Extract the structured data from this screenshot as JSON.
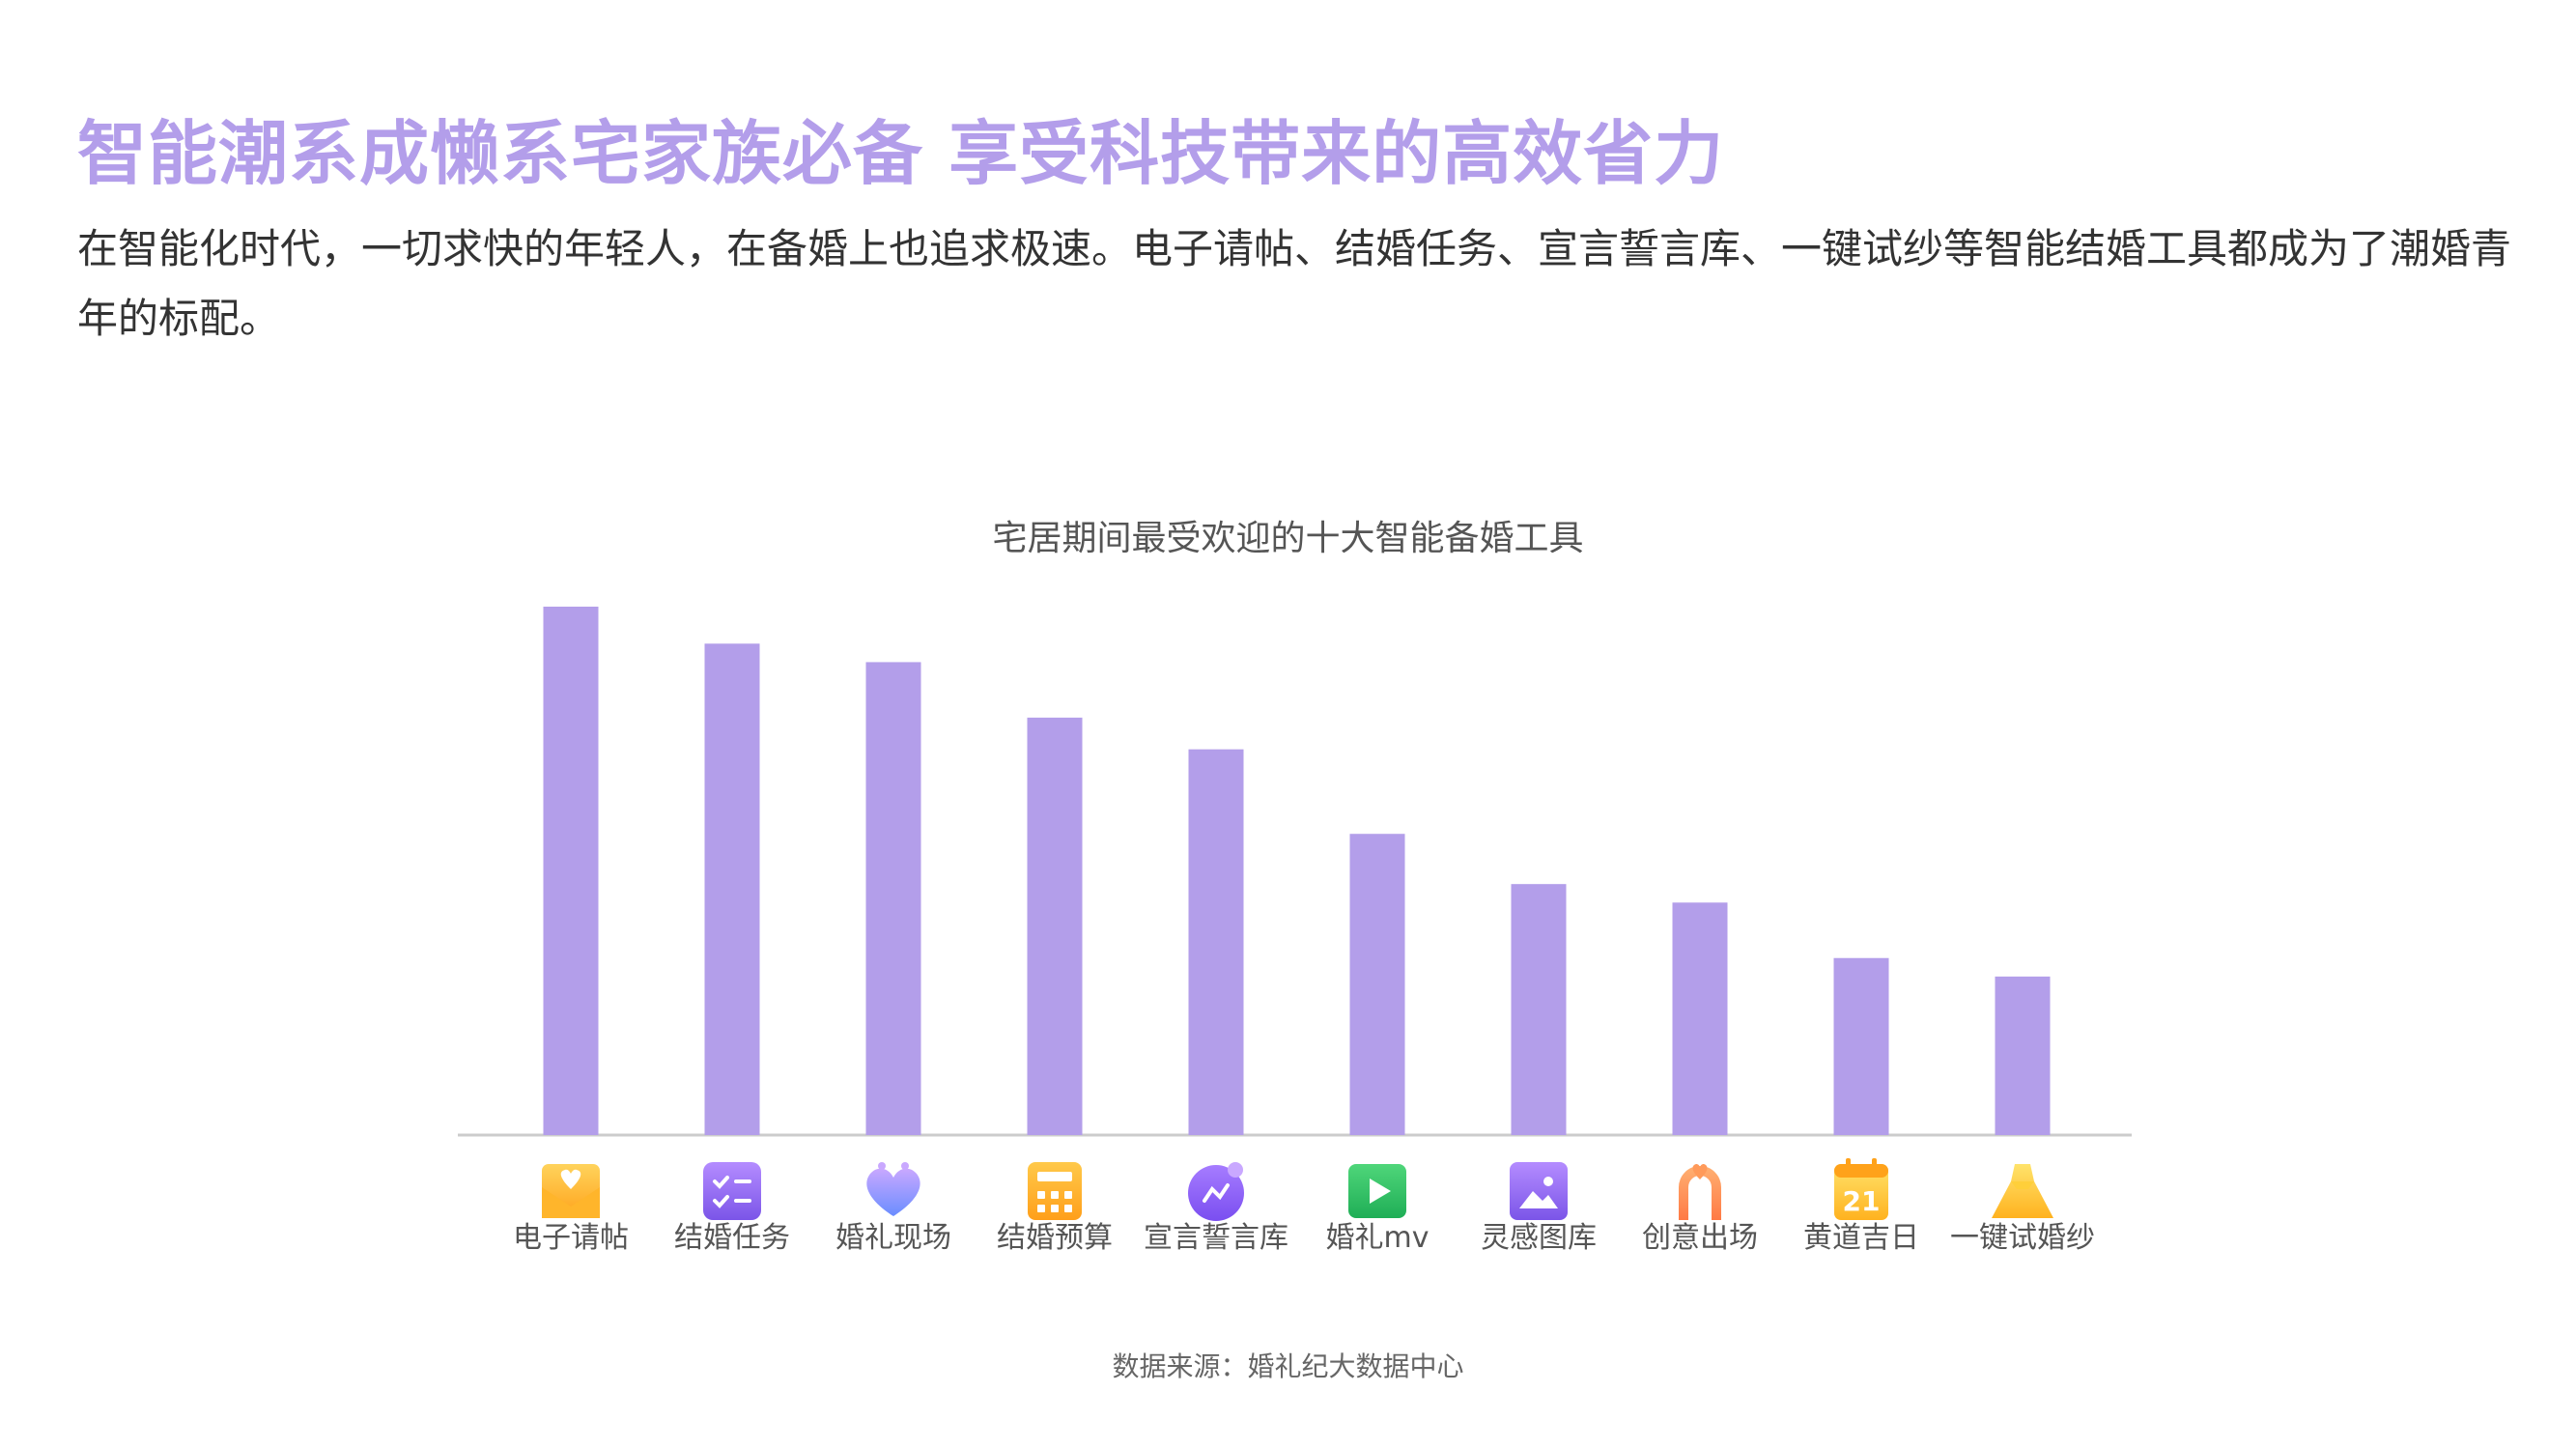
{
  "headline": "智能潮系成懒系宅家族必备 享受科技带来的高效省力",
  "intro": "在智能化时代，一切求快的年轻人，在备婚上也追求极速。电子请帖、结婚任务、宣言誓言库、一键试纱等智能结婚工具都成为了潮婚青年的标配。",
  "source": "数据来源：婚礼纪大数据中心",
  "colors": {
    "accent": "#b39eea",
    "bar": "#b39eea",
    "axis": "#cccccc"
  },
  "chart_data": {
    "type": "bar",
    "title": "宅居期间最受欢迎的十大智能备婚工具",
    "categories": [
      "电子请帖",
      "结婚任务",
      "婚礼现场",
      "结婚预算",
      "宣言誓言库",
      "婚礼mv",
      "灵感图库",
      "创意出场",
      "黄道吉日",
      "一键试婚纱"
    ],
    "values": [
      100,
      93,
      89.5,
      79,
      73,
      57,
      47.5,
      44,
      33.5,
      30
    ],
    "icons": [
      "invitation-envelope-icon",
      "checklist-icon",
      "heart-icon",
      "calculator-icon",
      "vow-chat-icon",
      "video-play-icon",
      "image-gallery-icon",
      "entrance-arch-icon",
      "calendar-21-icon",
      "wedding-dress-icon"
    ],
    "calendar_icon_text": "21",
    "ylim": [
      0,
      100
    ],
    "grid": false,
    "legend": "none",
    "xlabel": "",
    "ylabel": ""
  }
}
